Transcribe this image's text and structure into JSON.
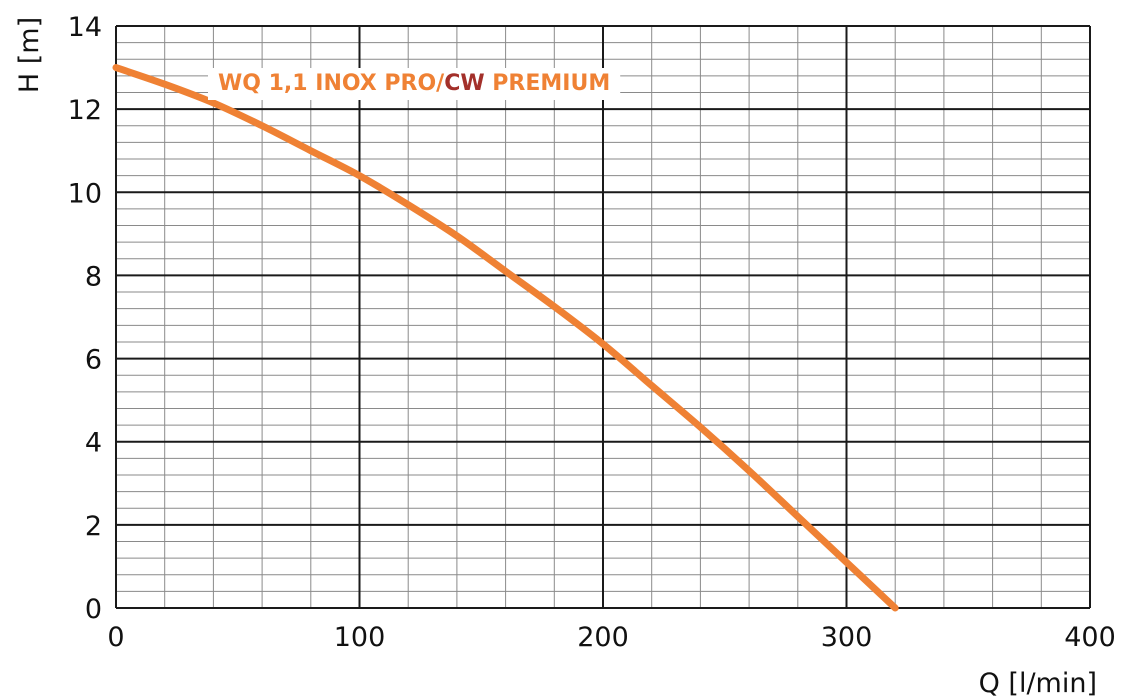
{
  "chart_data": {
    "type": "line",
    "xlabel": "Q [l/min]",
    "ylabel": "H [m]",
    "xlim": [
      0,
      400
    ],
    "ylim": [
      0,
      14
    ],
    "x_ticks": [
      0,
      100,
      200,
      300,
      400
    ],
    "y_ticks": [
      0,
      2,
      4,
      6,
      8,
      10,
      12,
      14
    ],
    "x_minor_step": 20,
    "y_minor_step": 0.4,
    "grid": true,
    "series": [
      {
        "name_parts": [
          "WQ 1,1 INOX PRO/",
          "CW",
          " PREMIUM"
        ],
        "color": "#EF8134",
        "x": [
          0,
          20,
          40,
          60,
          80,
          100,
          120,
          140,
          160,
          180,
          200,
          220,
          240,
          260,
          280,
          300,
          320
        ],
        "y": [
          13.0,
          12.6,
          12.15,
          11.6,
          11.0,
          10.4,
          9.7,
          8.95,
          8.1,
          7.25,
          6.35,
          5.35,
          4.35,
          3.3,
          2.2,
          1.1,
          0.0
        ]
      }
    ],
    "colors": {
      "series": "#EF8134",
      "cw_highlight": "#A3302A",
      "major_grid": "#1a1a1a",
      "minor_grid": "#8a8a8a"
    }
  }
}
